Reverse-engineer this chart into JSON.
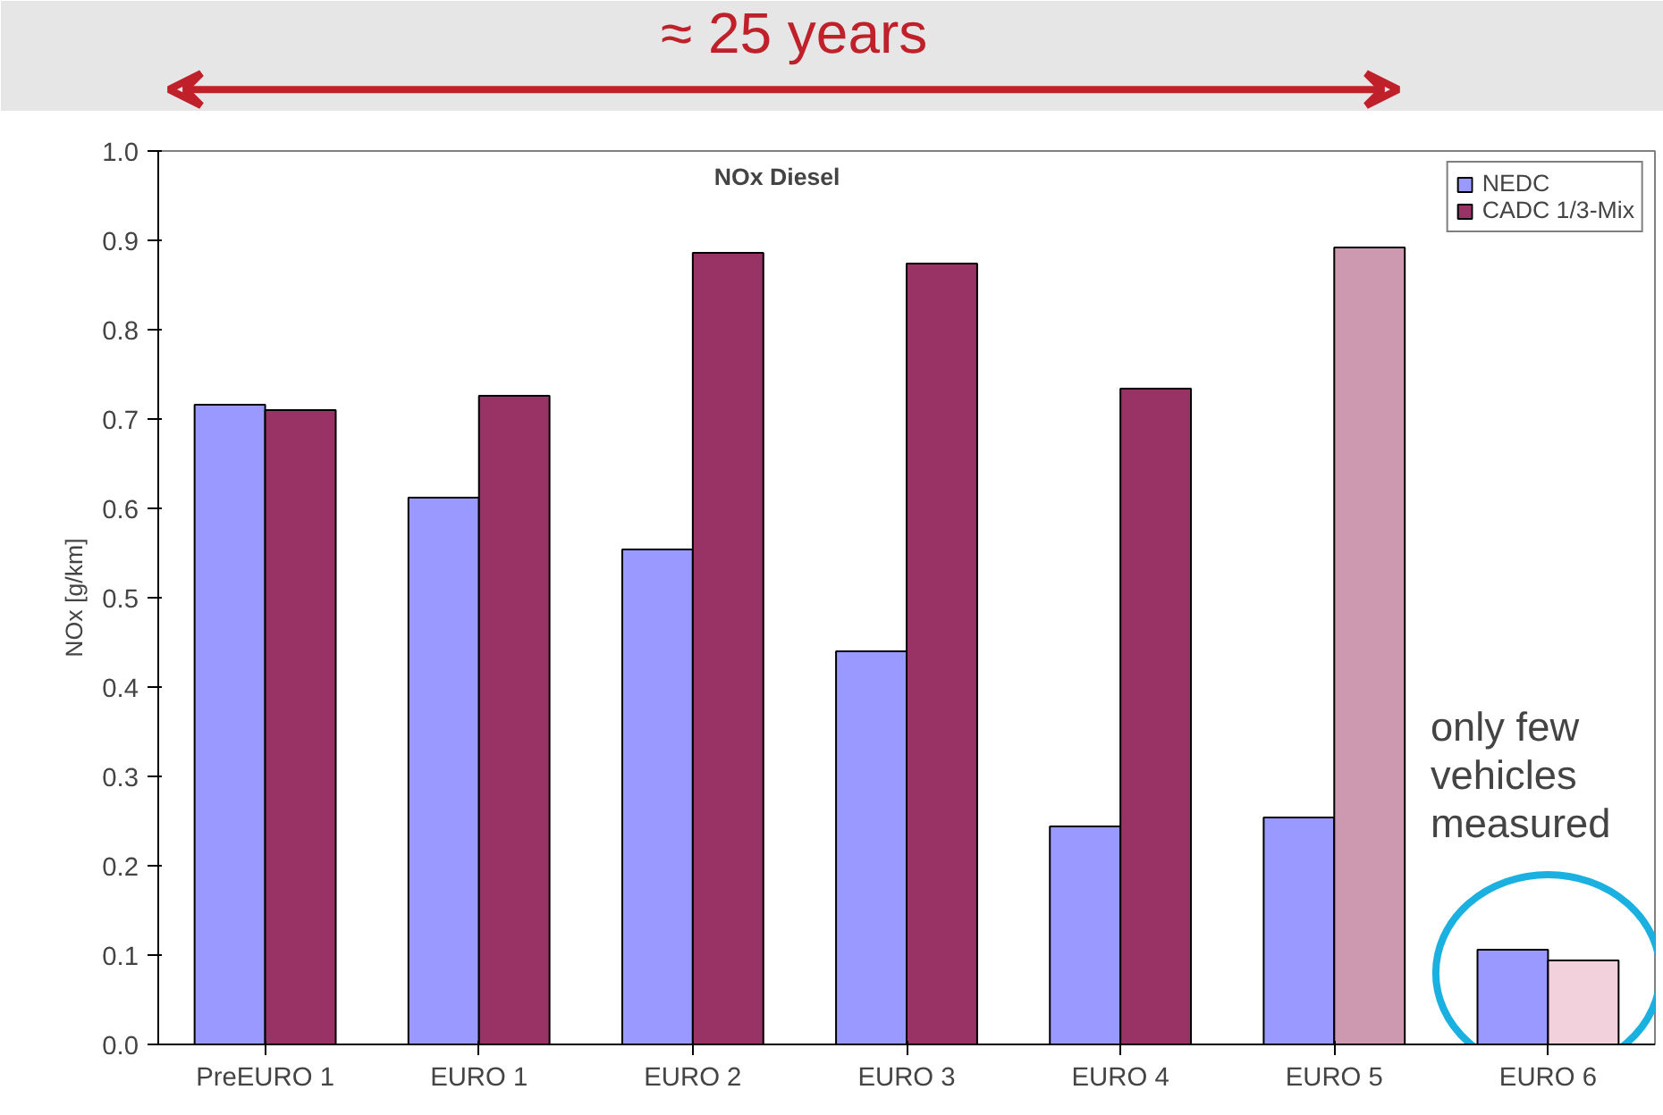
{
  "chart_data": {
    "type": "bar",
    "title": "NOx Diesel",
    "ylabel": "NOx [g/km]",
    "categories": [
      "PreEURO 1",
      "EURO 1",
      "EURO 2",
      "EURO 3",
      "EURO 4",
      "EURO 5",
      "EURO 6"
    ],
    "series": [
      {
        "name": "NEDC",
        "color": "#9999ff",
        "values": [
          0.716,
          0.612,
          0.554,
          0.44,
          0.244,
          0.254,
          0.106
        ]
      },
      {
        "name": "CADC 1/3-Mix",
        "color": "#993366",
        "colors": [
          null,
          null,
          null,
          null,
          null,
          "#cc99b0",
          "#f2d0dc"
        ],
        "values": [
          0.71,
          0.726,
          0.886,
          0.874,
          0.734,
          0.892,
          0.094
        ]
      }
    ],
    "ylim": [
      0,
      1
    ],
    "yticks": [
      {
        "value": 0,
        "label": "0.0"
      },
      0.1,
      0.2,
      0.3,
      0.4,
      0.5,
      0.6,
      0.7,
      0.8,
      0.9,
      {
        "value": 1,
        "label": "1.0"
      }
    ],
    "grid": false,
    "legend": "top right",
    "annotations": [
      "≈ 25 years",
      "only few vehicles measured"
    ]
  }
}
